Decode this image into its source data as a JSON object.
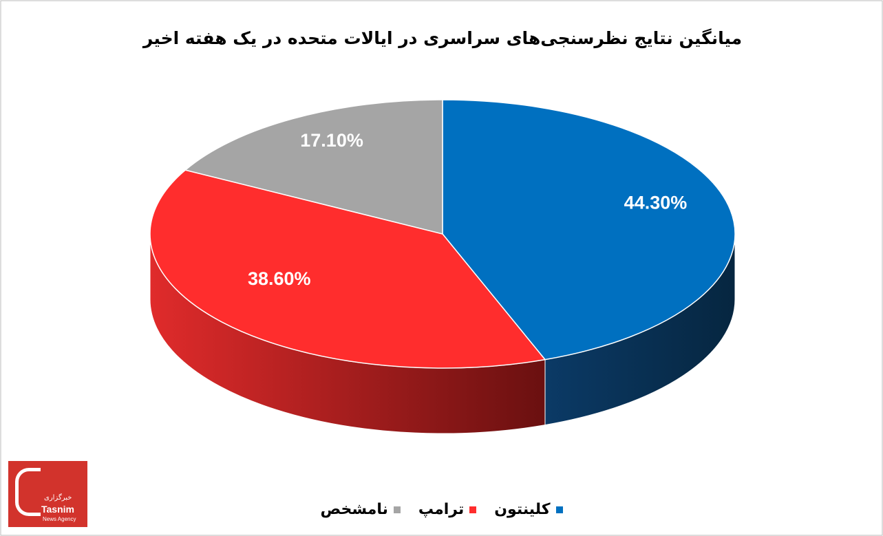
{
  "chart_data": {
    "type": "pie",
    "title": "میانگین نتایج نظرسنجی‌های سراسری در ایالات متحده در یک هفته اخیر",
    "categories": [
      "کلینتون",
      "ترامپ",
      "نامشخص"
    ],
    "values": [
      44.3,
      38.6,
      17.1
    ],
    "value_labels": [
      "44.30%",
      "38.60%",
      "17.10%"
    ],
    "colors": [
      "#0070c0",
      "#ff2d2d",
      "#a5a5a5"
    ]
  },
  "logo": {
    "name": "Tasnim",
    "subtitle": "News Agency",
    "label": "خبرگزاری"
  }
}
